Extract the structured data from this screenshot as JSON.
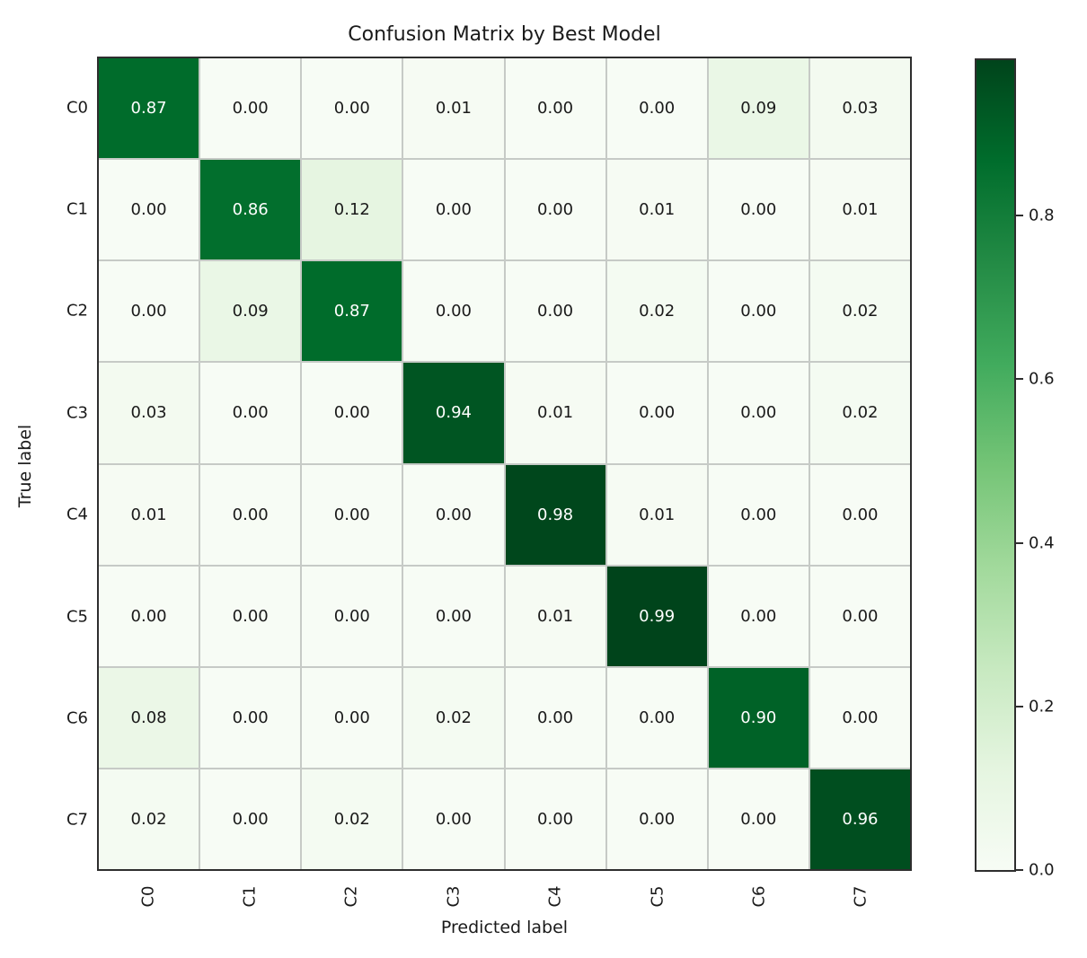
{
  "figure": {
    "background": "#ffffff"
  },
  "chart_data": {
    "type": "heatmap",
    "title": "Confusion Matrix by Best Model",
    "xlabel": "Predicted label",
    "ylabel": "True label",
    "x_tick_labels": [
      "C0",
      "C1",
      "C2",
      "C3",
      "C4",
      "C5",
      "C6",
      "C7"
    ],
    "y_tick_labels": [
      "C0",
      "C1",
      "C2",
      "C3",
      "C4",
      "C5",
      "C6",
      "C7"
    ],
    "matrix": [
      [
        0.87,
        0.0,
        0.0,
        0.01,
        0.0,
        0.0,
        0.09,
        0.03
      ],
      [
        0.0,
        0.86,
        0.12,
        0.0,
        0.0,
        0.01,
        0.0,
        0.01
      ],
      [
        0.0,
        0.09,
        0.87,
        0.0,
        0.0,
        0.02,
        0.0,
        0.02
      ],
      [
        0.03,
        0.0,
        0.0,
        0.94,
        0.01,
        0.0,
        0.0,
        0.02
      ],
      [
        0.01,
        0.0,
        0.0,
        0.0,
        0.98,
        0.01,
        0.0,
        0.0
      ],
      [
        0.0,
        0.0,
        0.0,
        0.0,
        0.01,
        0.99,
        0.0,
        0.0
      ],
      [
        0.08,
        0.0,
        0.0,
        0.02,
        0.0,
        0.0,
        0.9,
        0.0
      ],
      [
        0.02,
        0.0,
        0.02,
        0.0,
        0.0,
        0.0,
        0.0,
        0.96
      ]
    ],
    "value_decimals": 2,
    "vmin": 0.0,
    "vmax": 0.99,
    "colormap": "Greens",
    "colormap_stops": [
      {
        "pos": 0.0,
        "color": "#f7fcf5"
      },
      {
        "pos": 0.125,
        "color": "#e5f5e0"
      },
      {
        "pos": 0.25,
        "color": "#c7e9c0"
      },
      {
        "pos": 0.375,
        "color": "#a1d99b"
      },
      {
        "pos": 0.5,
        "color": "#74c476"
      },
      {
        "pos": 0.625,
        "color": "#41ab5d"
      },
      {
        "pos": 0.75,
        "color": "#238b45"
      },
      {
        "pos": 0.875,
        "color": "#006d2c"
      },
      {
        "pos": 1.0,
        "color": "#00441b"
      }
    ],
    "colorbar": {
      "position": "right",
      "ticks": [
        0.0,
        0.2,
        0.4,
        0.6,
        0.8
      ],
      "tick_labels": [
        "0.0",
        "0.2",
        "0.4",
        "0.6",
        "0.8"
      ]
    },
    "grid": "cell-borders",
    "grid_line_color": "#c6cac6",
    "spine_color": "#2e2e2e",
    "text_color": "#1a1a1a",
    "cell_text_light": "#ffffff",
    "cell_text_dark": "#1a1a1a",
    "cell_text_threshold": 0.495,
    "legend": "none"
  }
}
